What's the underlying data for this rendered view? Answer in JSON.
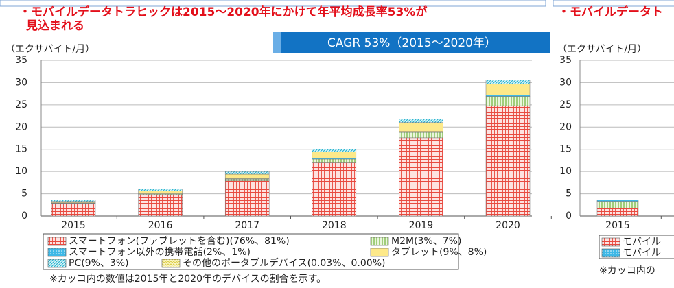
{
  "chart_data": [
    {
      "type": "bar",
      "stacked": true,
      "title": [
        "・モバイルデータトラヒックは2015～2020年にかけて年平均成長率53%が",
        "見込まれる"
      ],
      "y_label": "（エクサバイト/月）",
      "annotation": "CAGR 53%（2015～2020年）",
      "note": "※カッコ内の数値は2015年と2020年のデバイスの割合を示す。",
      "categories": [
        "2015",
        "2016",
        "2017",
        "2018",
        "2019",
        "2020"
      ],
      "ylim": [
        0,
        35
      ],
      "yticks": [
        0,
        5,
        10,
        15,
        20,
        25,
        30,
        35
      ],
      "grid": true,
      "series": [
        {
          "name": "スマートフォン(ファブレットを含む)(76%、81%)",
          "color": "#e8493f",
          "pattern": "grid",
          "values": [
            2.8,
            4.7,
            7.9,
            12.1,
            17.6,
            24.8
          ]
        },
        {
          "name": "M2M(3%、7%)",
          "color": "#6fb23a",
          "pattern": "vlines",
          "values": [
            0.1,
            0.2,
            0.4,
            0.7,
            1.2,
            2.1
          ]
        },
        {
          "name": "スマートフォン以外の携帯電話(2%、1%)",
          "color": "#3fb8e6",
          "pattern": "dots",
          "values": [
            0.07,
            0.1,
            0.1,
            0.2,
            0.2,
            0.3
          ]
        },
        {
          "name": "タブレット(9%、8%)",
          "color": "#fde98a",
          "pattern": "solid",
          "values": [
            0.3,
            0.6,
            1.0,
            1.4,
            2.0,
            2.5
          ]
        },
        {
          "name": "PC(9%、3%)",
          "color": "#2bb5cf",
          "pattern": "hatch",
          "values": [
            0.35,
            0.5,
            0.6,
            0.6,
            0.8,
            0.9
          ]
        },
        {
          "name": "その他のポータブルデバイス(0.03%、0.00%)",
          "color": "#d8c93a",
          "pattern": "wave",
          "values": [
            0,
            0,
            0,
            0,
            0,
            0
          ]
        }
      ]
    },
    {
      "type": "bar",
      "stacked": true,
      "title": [
        "・モバイルデータト"
      ],
      "y_label": "（エクサバイト/月）",
      "note": "※カッコ内の",
      "categories": [
        "2015"
      ],
      "ylim": [
        0,
        35
      ],
      "yticks": [
        0,
        5,
        10,
        15,
        20,
        25,
        30,
        35
      ],
      "grid": true,
      "series": [
        {
          "name": "モバイル",
          "color": "#e8493f",
          "pattern": "grid",
          "values": [
            1.8
          ]
        },
        {
          "color": "#6fb23a",
          "pattern": "vlines",
          "values": [
            1.5
          ]
        },
        {
          "name": "モバイル",
          "color": "#3fb8e6",
          "pattern": "dots",
          "values": [
            0.3
          ]
        }
      ]
    }
  ]
}
